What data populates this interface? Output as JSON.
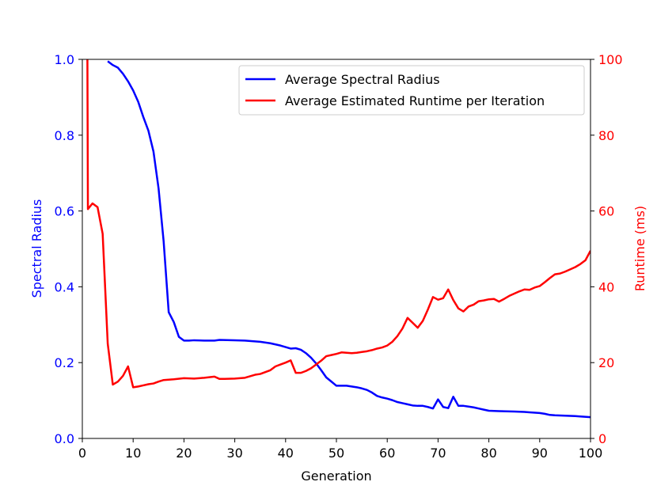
{
  "chart_data": {
    "type": "line",
    "xlabel": "Generation",
    "ylabel_left": "Spectral Radius",
    "ylabel_right": "Runtime (ms)",
    "xlim": [
      0,
      100
    ],
    "ylim_left": [
      0.0,
      1.0
    ],
    "ylim_right": [
      0,
      100
    ],
    "x_ticks": [
      "0",
      "10",
      "20",
      "30",
      "40",
      "50",
      "60",
      "70",
      "80",
      "90",
      "100"
    ],
    "y_ticks_left": [
      "0.0",
      "0.2",
      "0.4",
      "0.6",
      "0.8",
      "1.0"
    ],
    "y_ticks_right": [
      "0",
      "20",
      "40",
      "60",
      "80",
      "100"
    ],
    "grid": false,
    "legend_position": "top-right",
    "colors": {
      "left_axis": "#0000ff",
      "right_axis": "#ff0000"
    },
    "series": [
      {
        "name": "Average Spectral Radius",
        "axis": "left",
        "color": "#0000ff",
        "points": [
          [
            5,
            0.995
          ],
          [
            6,
            0.985
          ],
          [
            7,
            0.978
          ],
          [
            8,
            0.962
          ],
          [
            9,
            0.942
          ],
          [
            10,
            0.918
          ],
          [
            11,
            0.888
          ],
          [
            12,
            0.848
          ],
          [
            13,
            0.812
          ],
          [
            14,
            0.757
          ],
          [
            15,
            0.66
          ],
          [
            16,
            0.52
          ],
          [
            17,
            0.333
          ],
          [
            18,
            0.307
          ],
          [
            19,
            0.268
          ],
          [
            20,
            0.258
          ],
          [
            21,
            0.258
          ],
          [
            22,
            0.259
          ],
          [
            24,
            0.258
          ],
          [
            26,
            0.258
          ],
          [
            27,
            0.26
          ],
          [
            30,
            0.259
          ],
          [
            32,
            0.258
          ],
          [
            35,
            0.255
          ],
          [
            37,
            0.251
          ],
          [
            39,
            0.245
          ],
          [
            40,
            0.241
          ],
          [
            41,
            0.237
          ],
          [
            42,
            0.238
          ],
          [
            43,
            0.234
          ],
          [
            44,
            0.225
          ],
          [
            45,
            0.213
          ],
          [
            46,
            0.198
          ],
          [
            47,
            0.18
          ],
          [
            48,
            0.161
          ],
          [
            49,
            0.15
          ],
          [
            50,
            0.139
          ],
          [
            51,
            0.139
          ],
          [
            52,
            0.139
          ],
          [
            53,
            0.137
          ],
          [
            54,
            0.135
          ],
          [
            55,
            0.132
          ],
          [
            56,
            0.128
          ],
          [
            57,
            0.121
          ],
          [
            58,
            0.112
          ],
          [
            59,
            0.108
          ],
          [
            60,
            0.105
          ],
          [
            61,
            0.101
          ],
          [
            62,
            0.096
          ],
          [
            63,
            0.093
          ],
          [
            64,
            0.09
          ],
          [
            65,
            0.087
          ],
          [
            66,
            0.086
          ],
          [
            67,
            0.086
          ],
          [
            68,
            0.083
          ],
          [
            69,
            0.079
          ],
          [
            70,
            0.103
          ],
          [
            71,
            0.083
          ],
          [
            72,
            0.08
          ],
          [
            73,
            0.11
          ],
          [
            74,
            0.086
          ],
          [
            75,
            0.086
          ],
          [
            76,
            0.084
          ],
          [
            77,
            0.082
          ],
          [
            78,
            0.079
          ],
          [
            79,
            0.076
          ],
          [
            80,
            0.073
          ],
          [
            82,
            0.072
          ],
          [
            85,
            0.071
          ],
          [
            87,
            0.07
          ],
          [
            88,
            0.069
          ],
          [
            90,
            0.067
          ],
          [
            91,
            0.065
          ],
          [
            92,
            0.062
          ],
          [
            93,
            0.061
          ],
          [
            95,
            0.06
          ],
          [
            97,
            0.059
          ],
          [
            98,
            0.058
          ],
          [
            100,
            0.056
          ]
        ]
      },
      {
        "name": "Average Estimated Runtime per Iteration",
        "axis": "right",
        "color": "#ff0000",
        "points": [
          [
            1,
            100
          ],
          [
            1.1,
            60.5
          ],
          [
            2,
            62
          ],
          [
            3,
            61
          ],
          [
            4,
            54
          ],
          [
            5,
            25
          ],
          [
            6,
            14.2
          ],
          [
            7,
            15
          ],
          [
            8,
            16.5
          ],
          [
            9,
            19
          ],
          [
            10,
            13.5
          ],
          [
            11,
            13.7
          ],
          [
            12,
            14
          ],
          [
            13,
            14.3
          ],
          [
            14,
            14.5
          ],
          [
            15,
            15
          ],
          [
            16,
            15.4
          ],
          [
            18,
            15.6
          ],
          [
            20,
            15.9
          ],
          [
            22,
            15.8
          ],
          [
            24,
            16.0
          ],
          [
            26,
            16.3
          ],
          [
            27,
            15.7
          ],
          [
            28,
            15.7
          ],
          [
            30,
            15.8
          ],
          [
            32,
            16.0
          ],
          [
            33,
            16.4
          ],
          [
            34,
            16.8
          ],
          [
            35,
            17.0
          ],
          [
            36,
            17.5
          ],
          [
            37,
            18.0
          ],
          [
            38,
            19.0
          ],
          [
            39,
            19.5
          ],
          [
            40,
            20.0
          ],
          [
            41,
            20.6
          ],
          [
            42,
            17.3
          ],
          [
            43,
            17.3
          ],
          [
            44,
            17.8
          ],
          [
            45,
            18.5
          ],
          [
            46,
            19.5
          ],
          [
            47,
            20.5
          ],
          [
            48,
            21.7
          ],
          [
            49,
            22.0
          ],
          [
            50,
            22.3
          ],
          [
            51,
            22.7
          ],
          [
            52,
            22.6
          ],
          [
            53,
            22.5
          ],
          [
            54,
            22.6
          ],
          [
            55,
            22.8
          ],
          [
            56,
            23.0
          ],
          [
            57,
            23.3
          ],
          [
            58,
            23.7
          ],
          [
            59,
            24.0
          ],
          [
            60,
            24.5
          ],
          [
            61,
            25.5
          ],
          [
            62,
            27.0
          ],
          [
            63,
            29.0
          ],
          [
            64,
            31.8
          ],
          [
            65,
            30.5
          ],
          [
            66,
            29.2
          ],
          [
            67,
            31.0
          ],
          [
            68,
            34.0
          ],
          [
            69,
            37.3
          ],
          [
            70,
            36.6
          ],
          [
            71,
            37.0
          ],
          [
            72,
            39.3
          ],
          [
            73,
            36.5
          ],
          [
            74,
            34.3
          ],
          [
            75,
            33.5
          ],
          [
            76,
            34.8
          ],
          [
            77,
            35.3
          ],
          [
            78,
            36.2
          ],
          [
            79,
            36.4
          ],
          [
            80,
            36.7
          ],
          [
            81,
            36.8
          ],
          [
            82,
            36.1
          ],
          [
            83,
            36.8
          ],
          [
            84,
            37.6
          ],
          [
            85,
            38.2
          ],
          [
            86,
            38.8
          ],
          [
            87,
            39.3
          ],
          [
            88,
            39.2
          ],
          [
            89,
            39.8
          ],
          [
            90,
            40.2
          ],
          [
            91,
            41.2
          ],
          [
            92,
            42.3
          ],
          [
            93,
            43.3
          ],
          [
            94,
            43.5
          ],
          [
            95,
            44.0
          ],
          [
            96,
            44.6
          ],
          [
            97,
            45.2
          ],
          [
            98,
            46.0
          ],
          [
            99,
            47.0
          ],
          [
            100,
            49.5
          ]
        ]
      }
    ]
  }
}
